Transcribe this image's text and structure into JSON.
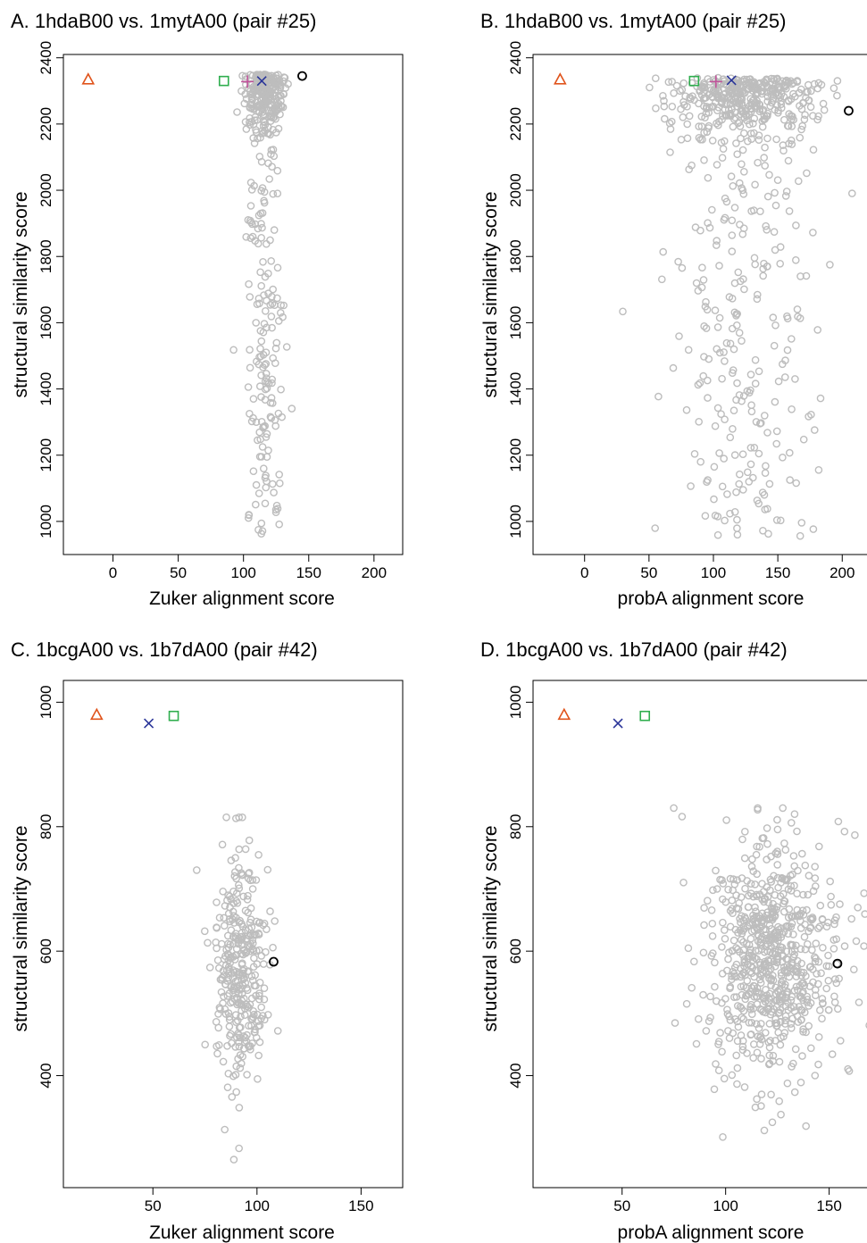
{
  "figure": {
    "background": "#ffffff"
  },
  "colors": {
    "point": "#bdbdbd",
    "frame": "#000000",
    "triangle": "#e0541c",
    "square": "#2fae4e",
    "cross": "#2a3599",
    "plus": "#c0539a",
    "circle": "#000000"
  },
  "chart_data": [
    {
      "id": "A",
      "type": "scatter",
      "title": "A.  1hdaB00 vs. 1mytA00 (pair #25)",
      "xlabel": "Zuker alignment score",
      "ylabel": "structural similarity score",
      "xlim": [
        -38,
        222
      ],
      "ylim": [
        900,
        2410
      ],
      "xticks": [
        0,
        50,
        100,
        150,
        200
      ],
      "yticks": [
        1000,
        1200,
        1400,
        1600,
        1800,
        2000,
        2200,
        2400
      ],
      "cloud": {
        "x_center": 116,
        "x_spread": 7,
        "y_min": 960,
        "y_max": 2350,
        "count": 420,
        "concentration": "top"
      },
      "special_points": [
        {
          "marker": "triangle",
          "x": -19,
          "y": 2335
        },
        {
          "marker": "square",
          "x": 85,
          "y": 2330
        },
        {
          "marker": "plus",
          "x": 103,
          "y": 2328
        },
        {
          "marker": "cross",
          "x": 114,
          "y": 2330
        },
        {
          "marker": "circle",
          "x": 145,
          "y": 2345
        }
      ]
    },
    {
      "id": "B",
      "type": "scatter",
      "title": "B.  1hdaB00 vs. 1mytA00 (pair #25)",
      "xlabel": "probA alignment score",
      "ylabel": "structural similarity score",
      "xlim": [
        -40,
        222
      ],
      "ylim": [
        900,
        2410
      ],
      "xticks": [
        0,
        50,
        100,
        150,
        200
      ],
      "yticks": [
        1000,
        1200,
        1400,
        1600,
        1800,
        2000,
        2200,
        2400
      ],
      "cloud": {
        "x_center": 125,
        "x_spread": 28,
        "y_min": 950,
        "y_max": 2340,
        "count": 640,
        "concentration": "top"
      },
      "special_points": [
        {
          "marker": "triangle",
          "x": -19,
          "y": 2335
        },
        {
          "marker": "square",
          "x": 85,
          "y": 2330
        },
        {
          "marker": "plus",
          "x": 102,
          "y": 2328
        },
        {
          "marker": "cross",
          "x": 114,
          "y": 2332
        },
        {
          "marker": "circle",
          "x": 205,
          "y": 2240
        }
      ]
    },
    {
      "id": "C",
      "type": "scatter",
      "title": "C.  1bcgA00 vs. 1b7dA00 (pair #42)",
      "xlabel": "Zuker alignment score",
      "ylabel": "structural similarity score",
      "xlim": [
        7,
        170
      ],
      "ylim": [
        220,
        1035
      ],
      "xticks": [
        50,
        100,
        150
      ],
      "yticks": [
        400,
        600,
        800,
        1000
      ],
      "cloud": {
        "x_center": 92,
        "x_spread": 6,
        "y_min": 265,
        "y_max": 815,
        "count": 330,
        "concentration": "middle"
      },
      "special_points": [
        {
          "marker": "triangle",
          "x": 23,
          "y": 980
        },
        {
          "marker": "cross",
          "x": 48,
          "y": 966
        },
        {
          "marker": "square",
          "x": 60,
          "y": 978
        },
        {
          "marker": "circle",
          "x": 108,
          "y": 583
        }
      ]
    },
    {
      "id": "D",
      "type": "scatter",
      "title": "D.  1bcgA00 vs. 1b7dA00 (pair #42)",
      "xlabel": "probA alignment score",
      "ylabel": "structural similarity score",
      "xlim": [
        7,
        170
      ],
      "ylim": [
        220,
        1035
      ],
      "xticks": [
        50,
        100,
        150
      ],
      "yticks": [
        400,
        600,
        800,
        1000
      ],
      "cloud": {
        "x_center": 122,
        "x_spread": 16,
        "y_min": 290,
        "y_max": 830,
        "count": 720,
        "concentration": "middle"
      },
      "special_points": [
        {
          "marker": "triangle",
          "x": 22,
          "y": 980
        },
        {
          "marker": "cross",
          "x": 48,
          "y": 966
        },
        {
          "marker": "square",
          "x": 61,
          "y": 978
        },
        {
          "marker": "circle",
          "x": 154,
          "y": 580
        }
      ]
    }
  ]
}
